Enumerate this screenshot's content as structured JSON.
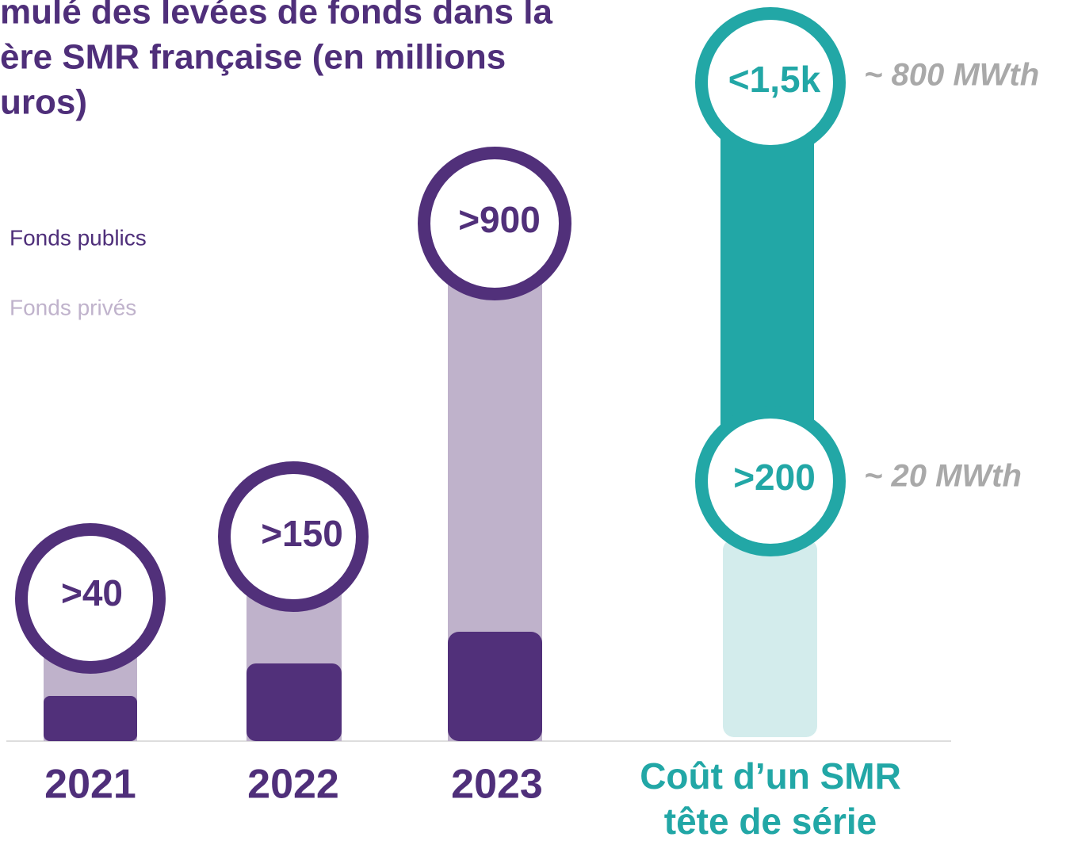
{
  "title_lines": [
    "mulé des levées de fonds dans la",
    "ère SMR française (en millions",
    "uros)"
  ],
  "legend": [
    "Fonds publics",
    "Fonds privés"
  ],
  "columns": [
    {
      "label": ">40",
      "year": "2021"
    },
    {
      "label": ">150",
      "year": "2022"
    },
    {
      "label": ">900",
      "year": "2023"
    }
  ],
  "cost": {
    "title_lines": [
      "Coût d’un SMR",
      "tête de série"
    ],
    "high": {
      "label": "<1,5k",
      "note": "~ 800 MWth"
    },
    "low": {
      "label": ">200",
      "note": "~ 20 MWth"
    }
  }
}
